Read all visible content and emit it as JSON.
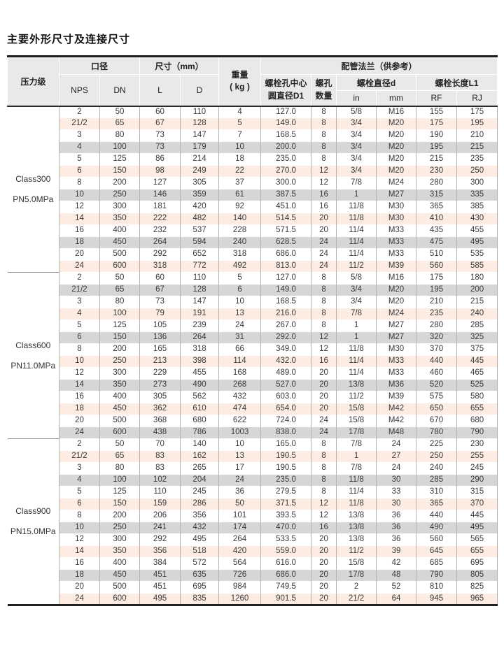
{
  "page": {
    "title": "主要外形尺寸及连接尺寸"
  },
  "colors": {
    "row_pink": "#fcece2",
    "row_gray": "#d6d6d6",
    "header_gray": "#e9e9e9",
    "border_dark": "#1f1f1f",
    "divider_gray": "#b3b3b3"
  },
  "table": {
    "header": {
      "pressure_class": "压力级",
      "bore": "口径",
      "nps": "NPS",
      "dn": "DN",
      "size_mm": "尺寸（mm）",
      "l": "L",
      "d": "D",
      "weight": "重量\n( kg )",
      "flange": "配管法兰（供参考）",
      "d1": "螺栓孔中心\n圆直径D1",
      "holes": "螺孔\n数量",
      "bolt_dia": "螺栓直径d",
      "in": "in",
      "mm": "mm",
      "bolt_len": "螺栓长度L1",
      "rf": "RF",
      "rj": "RJ"
    },
    "columns": [
      "nps",
      "dn",
      "l",
      "d",
      "weight",
      "d1",
      "holes",
      "in",
      "mm",
      "rf",
      "rj"
    ],
    "sections": [
      {
        "class_label": "Class300\nPN5.0MPa",
        "rows": [
          [
            "2",
            "50",
            "60",
            "110",
            "4",
            "127.0",
            "8",
            "5/8",
            "M16",
            "155",
            "175"
          ],
          [
            "21/2",
            "65",
            "67",
            "128",
            "5",
            "149.0",
            "8",
            "3/4",
            "M20",
            "175",
            "195"
          ],
          [
            "3",
            "80",
            "73",
            "147",
            "7",
            "168.5",
            "8",
            "3/4",
            "M20",
            "190",
            "210"
          ],
          [
            "4",
            "100",
            "73",
            "179",
            "10",
            "200.0",
            "8",
            "3/4",
            "M20",
            "195",
            "215"
          ],
          [
            "5",
            "125",
            "86",
            "214",
            "18",
            "235.0",
            "8",
            "3/4",
            "M20",
            "215",
            "235"
          ],
          [
            "6",
            "150",
            "98",
            "249",
            "22",
            "270.0",
            "12",
            "3/4",
            "M20",
            "230",
            "250"
          ],
          [
            "8",
            "200",
            "127",
            "305",
            "37",
            "300.0",
            "12",
            "7/8",
            "M24",
            "280",
            "300"
          ],
          [
            "10",
            "250",
            "146",
            "359",
            "61",
            "387.5",
            "16",
            "1",
            "M27",
            "315",
            "335"
          ],
          [
            "12",
            "300",
            "181",
            "420",
            "92",
            "451.0",
            "16",
            "11/8",
            "M30",
            "365",
            "385"
          ],
          [
            "14",
            "350",
            "222",
            "482",
            "140",
            "514.5",
            "20",
            "11/8",
            "M30",
            "410",
            "430"
          ],
          [
            "16",
            "400",
            "232",
            "537",
            "228",
            "571.5",
            "20",
            "11/4",
            "M33",
            "435",
            "455"
          ],
          [
            "18",
            "450",
            "264",
            "594",
            "240",
            "628.5",
            "24",
            "11/4",
            "M33",
            "475",
            "495"
          ],
          [
            "20",
            "500",
            "292",
            "652",
            "318",
            "686.0",
            "24",
            "11/4",
            "M33",
            "510",
            "535"
          ],
          [
            "24",
            "600",
            "318",
            "772",
            "492",
            "813.0",
            "24",
            "11/2",
            "M39",
            "560",
            "585"
          ]
        ]
      },
      {
        "class_label": "Class600\nPN11.0MPa",
        "rows": [
          [
            "2",
            "50",
            "60",
            "110",
            "5",
            "127.0",
            "8",
            "5/8",
            "M16",
            "175",
            "180"
          ],
          [
            "21/2",
            "65",
            "67",
            "128",
            "6",
            "149.0",
            "8",
            "3/4",
            "M20",
            "195",
            "200"
          ],
          [
            "3",
            "80",
            "73",
            "147",
            "10",
            "168.5",
            "8",
            "3/4",
            "M20",
            "210",
            "215"
          ],
          [
            "4",
            "100",
            "79",
            "191",
            "13",
            "216.0",
            "8",
            "7/8",
            "M24",
            "235",
            "240"
          ],
          [
            "5",
            "125",
            "105",
            "239",
            "24",
            "267.0",
            "8",
            "1",
            "M27",
            "280",
            "285"
          ],
          [
            "6",
            "150",
            "136",
            "264",
            "31",
            "292.0",
            "12",
            "1",
            "M27",
            "320",
            "325"
          ],
          [
            "8",
            "200",
            "165",
            "318",
            "66",
            "349.0",
            "12",
            "11/8",
            "M30",
            "370",
            "375"
          ],
          [
            "10",
            "250",
            "213",
            "398",
            "114",
            "432.0",
            "16",
            "11/4",
            "M33",
            "440",
            "445"
          ],
          [
            "12",
            "300",
            "229",
            "455",
            "168",
            "489.0",
            "20",
            "11/4",
            "M33",
            "460",
            "465"
          ],
          [
            "14",
            "350",
            "273",
            "490",
            "268",
            "527.0",
            "20",
            "13/8",
            "M36",
            "520",
            "525"
          ],
          [
            "16",
            "400",
            "305",
            "562",
            "432",
            "603.0",
            "20",
            "11/2",
            "M39",
            "575",
            "580"
          ],
          [
            "18",
            "450",
            "362",
            "610",
            "474",
            "654.0",
            "20",
            "15/8",
            "M42",
            "650",
            "655"
          ],
          [
            "20",
            "500",
            "368",
            "680",
            "622",
            "724.0",
            "24",
            "15/8",
            "M42",
            "670",
            "680"
          ],
          [
            "24",
            "600",
            "438",
            "786",
            "1003",
            "838.0",
            "24",
            "17/8",
            "M48",
            "780",
            "790"
          ]
        ]
      },
      {
        "class_label": "Class900\nPN15.0MPa",
        "rows": [
          [
            "2",
            "50",
            "70",
            "140",
            "10",
            "165.0",
            "8",
            "7/8",
            "24",
            "225",
            "230"
          ],
          [
            "21/2",
            "65",
            "83",
            "162",
            "13",
            "190.5",
            "8",
            "1",
            "27",
            "250",
            "255"
          ],
          [
            "3",
            "80",
            "83",
            "265",
            "17",
            "190.5",
            "8",
            "7/8",
            "24",
            "240",
            "245"
          ],
          [
            "4",
            "100",
            "102",
            "204",
            "24",
            "235.0",
            "8",
            "11/8",
            "30",
            "285",
            "290"
          ],
          [
            "5",
            "125",
            "110",
            "245",
            "36",
            "279.5",
            "8",
            "11/4",
            "33",
            "310",
            "315"
          ],
          [
            "6",
            "150",
            "159",
            "286",
            "50",
            "371.5",
            "12",
            "11/8",
            "30",
            "365",
            "370"
          ],
          [
            "8",
            "200",
            "206",
            "356",
            "101",
            "393.5",
            "12",
            "13/8",
            "36",
            "440",
            "445"
          ],
          [
            "10",
            "250",
            "241",
            "432",
            "174",
            "470.0",
            "16",
            "13/8",
            "36",
            "490",
            "495"
          ],
          [
            "12",
            "300",
            "292",
            "495",
            "264",
            "533.5",
            "20",
            "13/8",
            "36",
            "560",
            "565"
          ],
          [
            "14",
            "350",
            "356",
            "518",
            "420",
            "559.0",
            "20",
            "11/2",
            "39",
            "645",
            "655"
          ],
          [
            "16",
            "400",
            "384",
            "572",
            "564",
            "616.0",
            "20",
            "15/8",
            "42",
            "685",
            "695"
          ],
          [
            "18",
            "450",
            "451",
            "635",
            "726",
            "686.0",
            "20",
            "17/8",
            "48",
            "790",
            "805"
          ],
          [
            "20",
            "500",
            "451",
            "695",
            "984",
            "749.5",
            "20",
            "2",
            "52",
            "810",
            "825"
          ],
          [
            "24",
            "600",
            "495",
            "835",
            "1260",
            "901.5",
            "20",
            "21/2",
            "64",
            "945",
            "965"
          ]
        ]
      }
    ]
  }
}
